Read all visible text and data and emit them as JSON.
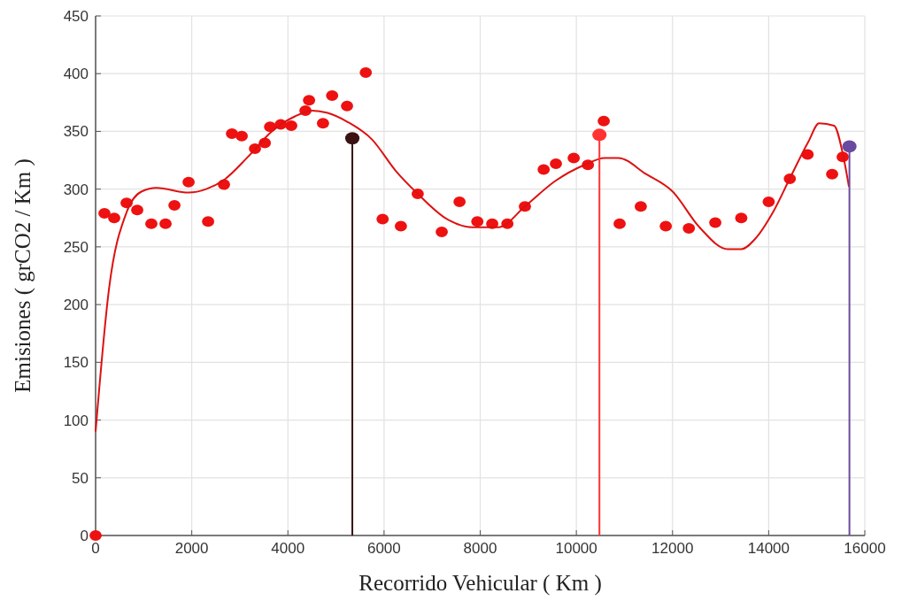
{
  "chart_data": {
    "type": "scatter",
    "xlabel": "Recorrido Vehicular  ( Km )",
    "ylabel": "Emisiones  ( grCO2 / Km )",
    "xlim": [
      0,
      16000
    ],
    "ylim": [
      0,
      450
    ],
    "xticks": [
      0,
      2000,
      4000,
      6000,
      8000,
      10000,
      12000,
      14000,
      16000
    ],
    "yticks": [
      0,
      50,
      100,
      150,
      200,
      250,
      300,
      350,
      400,
      450
    ],
    "grid": true,
    "marker": "circle",
    "series": [
      {
        "color": "#ee1111",
        "x": [
          0,
          184,
          387,
          645,
          866,
          1160,
          1455,
          1640,
          1934,
          2340,
          2670,
          2836,
          3040,
          3315,
          3520,
          3630,
          3850,
          4070,
          4365,
          4440,
          4730,
          4920,
          5230,
          5620,
          5970,
          6350,
          6700,
          7200,
          7570,
          7940,
          8250,
          8565,
          8930,
          9320,
          9575,
          9945,
          10240,
          10570,
          10900,
          11340,
          11860,
          12340,
          12890,
          13430,
          14000,
          14440,
          14810,
          15320,
          15540
        ],
        "values": [
          0,
          279,
          275,
          288,
          282,
          270,
          270,
          286,
          306,
          272,
          304,
          348,
          346,
          335,
          340,
          354,
          356,
          355,
          368,
          377,
          357,
          381,
          372,
          401,
          274,
          268,
          296,
          263,
          289,
          272,
          270,
          270,
          285,
          317,
          322,
          327,
          321,
          359,
          270,
          285,
          268,
          266,
          271,
          275,
          289,
          309,
          330,
          313,
          328
        ]
      },
      {
        "type": "line",
        "color": "#dd1111",
        "marker": "none",
        "x": [
          0,
          280,
          645,
          960,
          1270,
          1934,
          2300,
          2670,
          3170,
          3665,
          4145,
          4510,
          4825,
          5250,
          5750,
          6240,
          6700,
          7275,
          7830,
          8380,
          8930,
          9560,
          10170,
          10590,
          10870,
          11450,
          12000,
          12560,
          13150,
          13430,
          13720,
          14090,
          14460,
          14825,
          15050,
          15360,
          15540,
          15670
        ],
        "values": [
          90,
          214,
          280,
          298,
          301,
          297,
          300,
          308,
          328,
          350,
          363,
          368,
          366,
          358,
          343,
          316,
          296,
          275,
          267,
          267,
          285,
          307,
          321,
          327,
          327,
          313,
          298,
          267,
          248,
          248,
          257,
          280,
          311,
          341,
          357,
          355,
          331,
          302
        ]
      },
      {
        "type": "lollipop",
        "color": "#3a1212",
        "x": [
          5340
        ],
        "values": [
          344
        ]
      },
      {
        "type": "lollipop",
        "color": "#ff3333",
        "x": [
          10480
        ],
        "values": [
          347
        ]
      },
      {
        "type": "lollipop",
        "color": "#6a4aa0",
        "x": [
          15680
        ],
        "values": [
          337
        ]
      }
    ]
  }
}
